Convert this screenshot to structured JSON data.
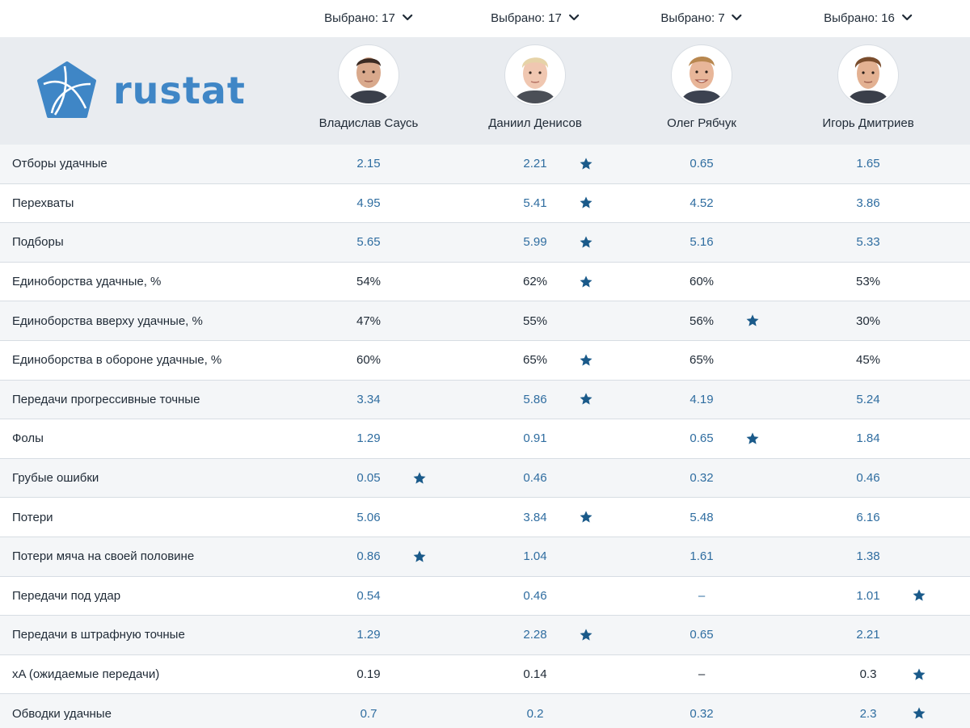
{
  "selectors": [
    {
      "label": "Выбрано: 17"
    },
    {
      "label": "Выбрано: 17"
    },
    {
      "label": "Выбрано: 7"
    },
    {
      "label": "Выбрано: 16"
    }
  ],
  "logo": {
    "text": "rustat"
  },
  "players": [
    {
      "name": "Владислав Саусь"
    },
    {
      "name": "Даниил Денисов"
    },
    {
      "name": "Олег Рябчук"
    },
    {
      "name": "Игорь Дмитриев"
    }
  ],
  "colors": {
    "accent": "#3f86c6",
    "value_blue": "#2f6da0",
    "star": "#1a5a8a",
    "header_bg": "#e9ecf0"
  },
  "rows": [
    {
      "metric": "Отборы удачные",
      "style": "blue",
      "values": [
        "2.15",
        "2.21",
        "0.65",
        "1.65"
      ],
      "star": 1
    },
    {
      "metric": "Перехваты",
      "style": "blue",
      "values": [
        "4.95",
        "5.41",
        "4.52",
        "3.86"
      ],
      "star": 1
    },
    {
      "metric": "Подборы",
      "style": "blue",
      "values": [
        "5.65",
        "5.99",
        "5.16",
        "5.33"
      ],
      "star": 1
    },
    {
      "metric": "Единоборства удачные, %",
      "style": "dark",
      "values": [
        "54%",
        "62%",
        "60%",
        "53%"
      ],
      "star": 1
    },
    {
      "metric": "Единоборства вверху удачные, %",
      "style": "dark",
      "values": [
        "47%",
        "55%",
        "56%",
        "30%"
      ],
      "star": 2
    },
    {
      "metric": "Единоборства в обороне удачные, %",
      "style": "dark",
      "values": [
        "60%",
        "65%",
        "65%",
        "45%"
      ],
      "star": 1
    },
    {
      "metric": "Передачи прогрессивные точные",
      "style": "blue",
      "values": [
        "3.34",
        "5.86",
        "4.19",
        "5.24"
      ],
      "star": 1
    },
    {
      "metric": "Фолы",
      "style": "blue",
      "values": [
        "1.29",
        "0.91",
        "0.65",
        "1.84"
      ],
      "star": 2
    },
    {
      "metric": "Грубые ошибки",
      "style": "blue",
      "values": [
        "0.05",
        "0.46",
        "0.32",
        "0.46"
      ],
      "star": 0
    },
    {
      "metric": "Потери",
      "style": "blue",
      "values": [
        "5.06",
        "3.84",
        "5.48",
        "6.16"
      ],
      "star": 1
    },
    {
      "metric": "Потери мяча на своей половине",
      "style": "blue",
      "values": [
        "0.86",
        "1.04",
        "1.61",
        "1.38"
      ],
      "star": 0
    },
    {
      "metric": "Передачи под удар",
      "style": "blue",
      "values": [
        "0.54",
        "0.46",
        "–",
        "1.01"
      ],
      "star": 3
    },
    {
      "metric": "Передачи в штрафную точные",
      "style": "blue",
      "values": [
        "1.29",
        "2.28",
        "0.65",
        "2.21"
      ],
      "star": 1
    },
    {
      "metric": "xA (ожидаемые передачи)",
      "style": "dark",
      "values": [
        "0.19",
        "0.14",
        "–",
        "0.3"
      ],
      "star": 3
    },
    {
      "metric": "Обводки удачные",
      "style": "blue",
      "values": [
        "0.7",
        "0.2",
        "0.32",
        "2.3"
      ],
      "star": 3
    }
  ]
}
